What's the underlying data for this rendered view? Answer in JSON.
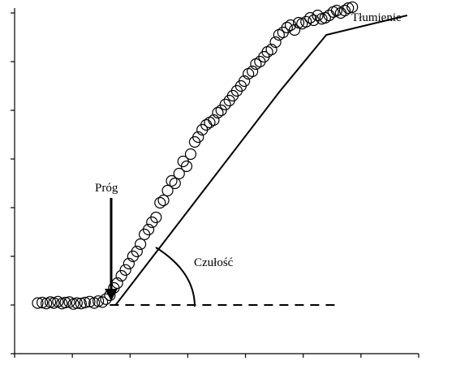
{
  "chart_data": {
    "type": "scatter",
    "title": "",
    "xlabel": "",
    "ylabel": "",
    "xlim": [
      0,
      7
    ],
    "ylim": [
      -1,
      6
    ],
    "xticks": [
      0,
      1,
      2,
      3,
      4,
      5,
      6,
      7
    ],
    "yticks": [
      -1,
      0,
      1,
      2,
      3,
      4,
      5,
      6
    ],
    "tick_labels_shown": false,
    "grid": false,
    "legend": "none",
    "annotations": {
      "threshold": "Próg",
      "sensitivity": "Czułość",
      "saturation": "Tłumienie"
    },
    "series": [
      {
        "marker": "open-circle",
        "x": [
          0.4,
          0.48,
          0.55,
          0.62,
          0.68,
          0.75,
          0.82,
          0.88,
          0.95,
          1.02,
          1.08,
          1.15,
          1.22,
          1.3,
          1.38,
          1.45,
          1.52,
          1.58,
          1.65,
          1.72,
          1.78,
          1.85,
          1.92,
          1.98,
          2.05,
          2.12,
          2.18,
          2.25,
          2.32,
          2.38,
          2.45,
          2.52,
          2.58,
          2.65,
          2.72,
          2.78,
          2.85,
          2.92,
          2.98,
          3.05,
          3.12,
          3.18,
          3.25,
          3.32,
          3.38,
          3.45,
          3.52,
          3.58,
          3.65,
          3.72,
          3.78,
          3.85,
          3.92,
          3.98,
          4.05,
          4.12,
          4.18,
          4.25,
          4.32,
          4.38,
          4.45,
          4.52,
          4.58,
          4.65,
          4.72,
          4.78,
          4.85,
          4.92,
          4.98,
          5.05,
          5.12,
          5.18,
          5.25,
          5.32,
          5.38,
          5.45,
          5.52,
          5.58,
          5.65,
          5.72,
          5.78,
          5.85
        ],
        "y": [
          0.04,
          0.05,
          0.03,
          0.06,
          0.04,
          0.07,
          0.03,
          0.05,
          0.06,
          0.02,
          0.04,
          0.03,
          0.05,
          0.07,
          0.04,
          0.08,
          0.06,
          0.12,
          0.2,
          0.35,
          0.45,
          0.6,
          0.72,
          0.85,
          1.0,
          1.1,
          1.25,
          1.45,
          1.55,
          1.7,
          1.8,
          2.1,
          2.15,
          2.35,
          2.55,
          2.5,
          2.7,
          2.95,
          2.85,
          3.1,
          3.35,
          3.45,
          3.6,
          3.7,
          3.75,
          3.8,
          3.95,
          4.0,
          4.12,
          4.2,
          4.3,
          4.4,
          4.5,
          4.6,
          4.75,
          4.8,
          4.95,
          5.0,
          5.1,
          5.2,
          5.25,
          5.4,
          5.55,
          5.6,
          5.7,
          5.75,
          5.65,
          5.8,
          5.78,
          5.82,
          5.9,
          5.85,
          5.95,
          5.88,
          5.9,
          5.95,
          6.02,
          6.05,
          6.0,
          6.05,
          6.1,
          6.12
        ]
      },
      {
        "name": "",
        "marker": "line-dashed",
        "x": [
          1.65,
          5.6
        ],
        "y": [
          0.0,
          0.0
        ]
      },
      {
        "name": "",
        "marker": "line-solid",
        "x": [
          1.75,
          4.6,
          5.4,
          6.8
        ],
        "y": [
          0.0,
          4.4,
          5.55,
          5.95
        ]
      }
    ]
  }
}
